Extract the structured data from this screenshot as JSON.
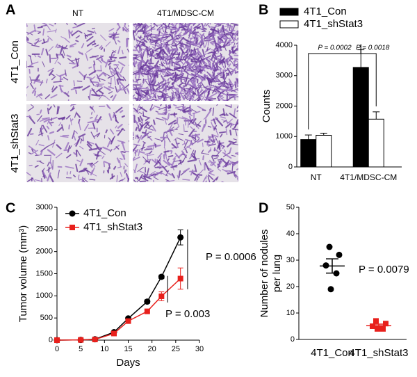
{
  "panel_a": {
    "letter": "A",
    "columns": [
      "NT",
      "4T1/MDSC-CM"
    ],
    "rows": [
      "4T1_Con",
      "4T1_shStat3"
    ]
  },
  "chart_data": [
    {
      "type": "bar",
      "panel": "B",
      "categories": [
        "NT",
        "4T1/MDSC-CM"
      ],
      "series": [
        {
          "name": "4T1_Con",
          "color": "#000000",
          "values": [
            900,
            3270
          ],
          "errors": [
            150,
            580
          ]
        },
        {
          "name": "4T1_shStat3",
          "color": "#ffffff",
          "values": [
            1040,
            1570
          ],
          "errors": [
            70,
            240
          ]
        }
      ],
      "ylabel": "Counts",
      "ylim": [
        0,
        4000
      ],
      "yticks": [
        0,
        1000,
        2000,
        3000,
        4000
      ],
      "legend": "top",
      "annotations": [
        "P = 0.0002",
        "P = 0.0018"
      ]
    },
    {
      "type": "line",
      "panel": "C",
      "x": [
        0,
        5,
        8,
        12,
        15,
        19,
        22,
        26
      ],
      "series": [
        {
          "name": "4T1_Con",
          "color": "#000000",
          "marker": "circle",
          "values": [
            0,
            5,
            20,
            180,
            490,
            870,
            1430,
            2320
          ],
          "errors": [
            0,
            0,
            0,
            0,
            20,
            40,
            40,
            170
          ]
        },
        {
          "name": "4T1_shStat3",
          "color": "#e8201c",
          "marker": "square",
          "values": [
            0,
            5,
            15,
            150,
            430,
            650,
            990,
            1390
          ],
          "errors": [
            0,
            0,
            0,
            0,
            20,
            30,
            100,
            240
          ]
        }
      ],
      "xlabel": "Days",
      "ylabel": "Tumor volume (mm³)",
      "xlim": [
        0,
        30
      ],
      "xticks": [
        0,
        5,
        10,
        15,
        20,
        25,
        30
      ],
      "ylim": [
        0,
        3000
      ],
      "yticks": [
        0,
        500,
        1000,
        1500,
        2000,
        2500,
        3000
      ],
      "legend": "top-left",
      "annotations": [
        "P = 0.0006",
        "P = 0.003"
      ]
    },
    {
      "type": "dot",
      "panel": "D",
      "categories": [
        "4T1_Con",
        "4T1_shStat3"
      ],
      "values": [
        [
          35,
          32,
          28,
          25,
          19
        ],
        [
          7,
          6,
          5,
          4,
          4
        ]
      ],
      "means": [
        27.8,
        5.2
      ],
      "sems": [
        2.7,
        0.6
      ],
      "colors": [
        "#000000",
        "#e8201c"
      ],
      "markers": [
        "circle",
        "square"
      ],
      "ylabel": [
        "Number of nodules",
        "per lung"
      ],
      "ylim": [
        0,
        50
      ],
      "yticks": [
        0,
        10,
        20,
        30,
        40,
        50
      ],
      "annotations": [
        "P = 0.0079"
      ]
    }
  ]
}
